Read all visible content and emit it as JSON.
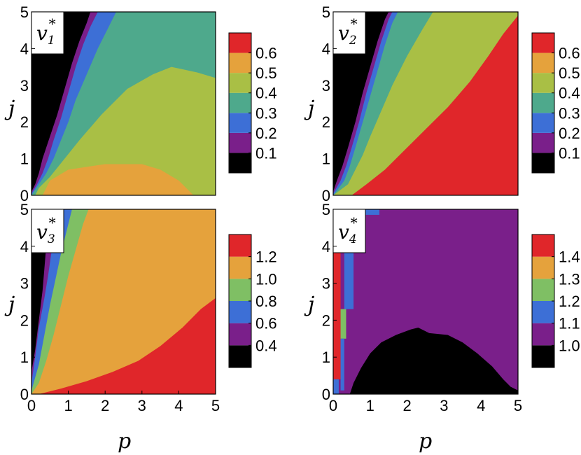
{
  "colors": {
    "black": "#000000",
    "purple": "#7a1f8a",
    "blue": "#3d6fd6",
    "teal": "#4ea98c",
    "yellowgreen": "#a9bf45",
    "orange": "#e5a23c",
    "red": "#e0262a",
    "lightgreen": "#7fbf64"
  },
  "chart_data": [
    {
      "type": "heatmap",
      "label": "v1*",
      "label_base": "v",
      "label_sub": "1",
      "label_sup": "*",
      "xlabel": "",
      "ylabel": "j",
      "xlim": [
        0,
        5
      ],
      "ylim": [
        0,
        5
      ],
      "xticks": [
        "0",
        "1",
        "2",
        "3",
        "4",
        "5"
      ],
      "yticks": [
        "0",
        "1",
        "2",
        "3",
        "4",
        "5"
      ],
      "colorbar": {
        "levels": [
          "0.1",
          "0.2",
          "0.3",
          "0.4",
          "0.5",
          "0.6"
        ],
        "colors": [
          "black",
          "purple",
          "blue",
          "teal",
          "yellowgreen",
          "orange",
          "red"
        ]
      },
      "boundaries": [
        {
          "level": 1,
          "points": [
            [
              0,
              0.1
            ],
            [
              0.1,
              0.3
            ],
            [
              0.2,
              0.6
            ],
            [
              0.3,
              1.0
            ],
            [
              0.5,
              1.6
            ],
            [
              0.7,
              2.2
            ],
            [
              0.9,
              2.9
            ],
            [
              1.1,
              3.6
            ],
            [
              1.3,
              4.2
            ],
            [
              1.5,
              4.7
            ],
            [
              1.6,
              5
            ]
          ]
        },
        {
          "level": 2,
          "points": [
            [
              0,
              0.05
            ],
            [
              0.15,
              0.3
            ],
            [
              0.3,
              0.6
            ],
            [
              0.45,
              1.0
            ],
            [
              0.6,
              1.5
            ],
            [
              0.8,
              2.1
            ],
            [
              1.0,
              2.8
            ],
            [
              1.2,
              3.5
            ],
            [
              1.4,
              4.1
            ],
            [
              1.6,
              4.6
            ],
            [
              1.8,
              5
            ]
          ]
        },
        {
          "level": 3,
          "points": [
            [
              0,
              0
            ],
            [
              0.2,
              0.3
            ],
            [
              0.4,
              0.6
            ],
            [
              0.6,
              1.0
            ],
            [
              0.8,
              1.5
            ],
            [
              1.0,
              2.0
            ],
            [
              1.2,
              2.6
            ],
            [
              1.5,
              3.3
            ],
            [
              1.8,
              4.0
            ],
            [
              2.1,
              4.6
            ],
            [
              2.3,
              5
            ]
          ]
        },
        {
          "level": 4,
          "points": [
            [
              0.1,
              0
            ],
            [
              0.2,
              0.2
            ],
            [
              0.5,
              0.5
            ],
            [
              0.9,
              1.0
            ],
            [
              1.3,
              1.5
            ],
            [
              1.9,
              2.2
            ],
            [
              2.6,
              2.9
            ],
            [
              3.3,
              3.3
            ],
            [
              3.8,
              3.5
            ],
            [
              4.5,
              3.35
            ],
            [
              5,
              3.2
            ]
          ]
        },
        {
          "level": 5,
          "points": [
            [
              0.3,
              0
            ],
            [
              0.5,
              0.4
            ],
            [
              1.0,
              0.7
            ],
            [
              2.0,
              0.85
            ],
            [
              3.0,
              0.85
            ],
            [
              3.5,
              0.7
            ],
            [
              4.0,
              0.4
            ],
            [
              4.4,
              0
            ]
          ]
        }
      ]
    },
    {
      "type": "heatmap",
      "label": "v2*",
      "label_base": "v",
      "label_sub": "2",
      "label_sup": "*",
      "xlabel": "",
      "ylabel": "j",
      "xlim": [
        0,
        5
      ],
      "ylim": [
        0,
        5
      ],
      "xticks": [
        "0",
        "1",
        "2",
        "3",
        "4",
        "5"
      ],
      "yticks": [
        "0",
        "1",
        "2",
        "3",
        "4",
        "5"
      ],
      "colorbar": {
        "levels": [
          "0.1",
          "0.2",
          "0.3",
          "0.4",
          "0.5",
          "0.6"
        ],
        "colors": [
          "black",
          "purple",
          "blue",
          "teal",
          "yellowgreen",
          "orange",
          "red"
        ]
      },
      "boundaries": [
        {
          "level": 1,
          "points": [
            [
              0,
              0.1
            ],
            [
              0.1,
              0.4
            ],
            [
              0.25,
              0.8
            ],
            [
              0.4,
              1.3
            ],
            [
              0.6,
              2.0
            ],
            [
              0.8,
              2.8
            ],
            [
              1.0,
              3.5
            ],
            [
              1.2,
              4.2
            ],
            [
              1.4,
              4.8
            ],
            [
              1.5,
              5
            ]
          ]
        },
        {
          "level": 2,
          "points": [
            [
              0,
              0.05
            ],
            [
              0.2,
              0.4
            ],
            [
              0.35,
              0.8
            ],
            [
              0.5,
              1.3
            ],
            [
              0.7,
              2.0
            ],
            [
              0.9,
              2.8
            ],
            [
              1.1,
              3.5
            ],
            [
              1.3,
              4.2
            ],
            [
              1.5,
              4.8
            ],
            [
              1.6,
              5
            ]
          ]
        },
        {
          "level": 3,
          "points": [
            [
              0,
              0
            ],
            [
              0.3,
              0.4
            ],
            [
              0.45,
              0.8
            ],
            [
              0.6,
              1.3
            ],
            [
              0.8,
              2.0
            ],
            [
              1.0,
              2.7
            ],
            [
              1.2,
              3.4
            ],
            [
              1.4,
              4.1
            ],
            [
              1.6,
              4.7
            ],
            [
              1.75,
              5
            ]
          ]
        },
        {
          "level": 4,
          "points": [
            [
              0,
              0
            ],
            [
              0.4,
              0.3
            ],
            [
              0.6,
              0.7
            ],
            [
              0.8,
              1.1
            ],
            [
              1.0,
              1.6
            ],
            [
              1.3,
              2.3
            ],
            [
              1.6,
              3.0
            ],
            [
              2.0,
              3.8
            ],
            [
              2.4,
              4.5
            ],
            [
              2.7,
              5
            ]
          ]
        },
        {
          "level": 5,
          "points": [
            [
              0.5,
              0
            ],
            [
              0.9,
              0.3
            ],
            [
              1.4,
              0.7
            ],
            [
              1.9,
              1.2
            ],
            [
              2.5,
              1.8
            ],
            [
              3.1,
              2.4
            ],
            [
              3.7,
              3.1
            ],
            [
              4.2,
              3.8
            ],
            [
              4.6,
              4.4
            ],
            [
              5,
              4.9
            ]
          ]
        }
      ]
    },
    {
      "type": "heatmap",
      "label": "v3*",
      "label_base": "v",
      "label_sub": "3",
      "label_sup": "*",
      "xlabel": "p",
      "ylabel": "j",
      "xlim": [
        0,
        5
      ],
      "ylim": [
        0,
        5
      ],
      "xticks": [
        "0",
        "1",
        "2",
        "3",
        "4",
        "5"
      ],
      "yticks": [
        "0",
        "1",
        "2",
        "3",
        "4",
        "5"
      ],
      "colorbar": {
        "levels": [
          "0.4",
          "0.6",
          "0.8",
          "1.0",
          "1.2"
        ],
        "colors": [
          "black",
          "purple",
          "blue",
          "lightgreen",
          "orange",
          "red"
        ]
      },
      "boundaries": [
        {
          "level": 1,
          "points": [
            [
              0,
              0.6
            ],
            [
              0.1,
              1.2
            ],
            [
              0.2,
              2.0
            ],
            [
              0.3,
              2.8
            ],
            [
              0.35,
              3.4
            ],
            [
              0.4,
              4.0
            ],
            [
              0.45,
              4.6
            ],
            [
              0.5,
              5
            ]
          ]
        },
        {
          "level": 2,
          "points": [
            [
              0,
              0.3
            ],
            [
              0.1,
              1.0
            ],
            [
              0.2,
              1.8
            ],
            [
              0.35,
              2.6
            ],
            [
              0.45,
              3.2
            ],
            [
              0.55,
              3.9
            ],
            [
              0.65,
              4.5
            ],
            [
              0.75,
              5
            ]
          ]
        },
        {
          "level": 3,
          "points": [
            [
              0,
              0.1
            ],
            [
              0.2,
              0.8
            ],
            [
              0.35,
              1.6
            ],
            [
              0.5,
              2.4
            ],
            [
              0.65,
              3.1
            ],
            [
              0.8,
              3.8
            ],
            [
              0.95,
              4.4
            ],
            [
              1.1,
              5
            ]
          ]
        },
        {
          "level": 4,
          "points": [
            [
              0,
              0
            ],
            [
              0.2,
              0.3
            ],
            [
              0.4,
              0.9
            ],
            [
              0.6,
              1.6
            ],
            [
              0.8,
              2.4
            ],
            [
              1.0,
              3.2
            ],
            [
              1.2,
              3.9
            ],
            [
              1.4,
              4.6
            ],
            [
              1.55,
              5
            ]
          ]
        },
        {
          "level": 5,
          "points": [
            [
              0.2,
              0
            ],
            [
              0.8,
              0.15
            ],
            [
              1.5,
              0.35
            ],
            [
              2.2,
              0.6
            ],
            [
              2.9,
              0.9
            ],
            [
              3.5,
              1.3
            ],
            [
              4.1,
              1.8
            ],
            [
              4.6,
              2.3
            ],
            [
              5,
              2.6
            ]
          ]
        }
      ]
    },
    {
      "type": "heatmap",
      "label": "v4*",
      "label_base": "v",
      "label_sub": "4",
      "label_sup": "*",
      "xlabel": "p",
      "ylabel": "j",
      "xlim": [
        0,
        5
      ],
      "ylim": [
        0,
        5
      ],
      "xticks": [
        "0",
        "1",
        "2",
        "3",
        "4",
        "5"
      ],
      "yticks": [
        "0",
        "1",
        "2",
        "3",
        "4",
        "5"
      ],
      "colorbar": {
        "levels": [
          "1.0",
          "1.1",
          "1.2",
          "1.3",
          "1.4"
        ],
        "colors": [
          "black",
          "purple",
          "blue",
          "lightgreen",
          "orange",
          "red"
        ]
      },
      "grid_rows": [
        [
          0.0,
          5.0,
          [
            "R",
            "R",
            "G",
            "G",
            "G",
            "B",
            "B",
            "B",
            "P"
          ]
        ],
        [
          4.75,
          5.0,
          [
            "R",
            "R",
            "G",
            "G",
            "B",
            "B",
            "B",
            "P"
          ]
        ],
        [
          4.5,
          4.75,
          [
            "R",
            "R",
            "G",
            "B",
            "B",
            "P"
          ]
        ],
        [
          4.25,
          4.5,
          [
            "R",
            "R",
            "B",
            "B",
            "P"
          ]
        ],
        [
          4.0,
          4.25,
          [
            "R",
            "R",
            "B",
            "B",
            "P"
          ]
        ],
        [
          3.75,
          4.0,
          [
            "R",
            "R",
            "B",
            "P"
          ]
        ],
        [
          3.5,
          3.75,
          [
            "R",
            "R",
            "B",
            "P"
          ]
        ],
        [
          3.25,
          3.5,
          [
            "R",
            "R",
            "B",
            "P"
          ]
        ],
        [
          3.0,
          3.25,
          [
            "R",
            "R",
            "B",
            "P"
          ]
        ],
        [
          2.75,
          3.0,
          [
            "R",
            "R",
            "B",
            "P"
          ]
        ],
        [
          2.5,
          2.75,
          [
            "R",
            "R",
            "B",
            "P"
          ]
        ],
        [
          2.25,
          2.5,
          [
            "R",
            "G",
            "B",
            "P"
          ]
        ],
        [
          2.0,
          2.25,
          [
            "R",
            "G",
            "P"
          ]
        ],
        [
          1.75,
          2.0,
          [
            "R",
            "G",
            "P"
          ]
        ],
        [
          1.5,
          1.75,
          [
            "R",
            "G",
            "P"
          ]
        ],
        [
          1.25,
          1.5,
          [
            "R",
            "B",
            "P"
          ]
        ],
        [
          1.0,
          1.25,
          [
            "R",
            "B",
            "P"
          ]
        ],
        [
          0.75,
          1.0,
          [
            "R",
            "B",
            "P"
          ]
        ],
        [
          0.5,
          0.75,
          [
            "R",
            "P"
          ]
        ],
        [
          0.25,
          0.5,
          [
            "B",
            "P"
          ]
        ],
        [
          0.0,
          0.25,
          [
            "B",
            "P"
          ]
        ]
      ],
      "row_widths": [
        0.2,
        0.2,
        0.2,
        0.2,
        0.2,
        0.2,
        0.2,
        0.2,
        0.2,
        0.2
      ],
      "bottom_region": {
        "level": 0,
        "points": [
          [
            0.45,
            0
          ],
          [
            0.55,
            0.3
          ],
          [
            0.75,
            0.7
          ],
          [
            1.0,
            1.1
          ],
          [
            1.3,
            1.4
          ],
          [
            1.7,
            1.6
          ],
          [
            2.1,
            1.75
          ],
          [
            2.3,
            1.8
          ],
          [
            2.6,
            1.65
          ],
          [
            3.1,
            1.6
          ],
          [
            3.5,
            1.4
          ],
          [
            3.9,
            1.1
          ],
          [
            4.3,
            0.75
          ],
          [
            4.6,
            0.4
          ],
          [
            4.8,
            0.2
          ],
          [
            5,
            0.1
          ],
          [
            5,
            0
          ]
        ]
      },
      "left_strips": [
        {
          "level": 5,
          "x0": 0,
          "x1": 0.2,
          "y0": 0.4,
          "y1": 5
        },
        {
          "level": 3,
          "x0": 0.2,
          "x1": 0.35,
          "y0": 1.5,
          "y1": 2.3
        },
        {
          "level": 3,
          "x0": 0.3,
          "x1": 0.45,
          "y0": 4.7,
          "y1": 5
        },
        {
          "level": 3,
          "x0": 0.45,
          "x1": 0.6,
          "y0": 4.85,
          "y1": 5
        },
        {
          "level": 2,
          "x0": 0.2,
          "x1": 0.3,
          "y0": 0.1,
          "y1": 1.5
        },
        {
          "level": 2,
          "x0": 0.3,
          "x1": 0.55,
          "y0": 2.3,
          "y1": 4.7
        },
        {
          "level": 2,
          "x0": 0.45,
          "x1": 0.75,
          "y0": 4.2,
          "y1": 4.85
        },
        {
          "level": 2,
          "x0": 0.6,
          "x1": 1.25,
          "y0": 4.85,
          "y1": 5
        },
        {
          "level": 2,
          "x0": 0,
          "x1": 0.15,
          "y0": 0,
          "y1": 0.4
        }
      ]
    }
  ]
}
